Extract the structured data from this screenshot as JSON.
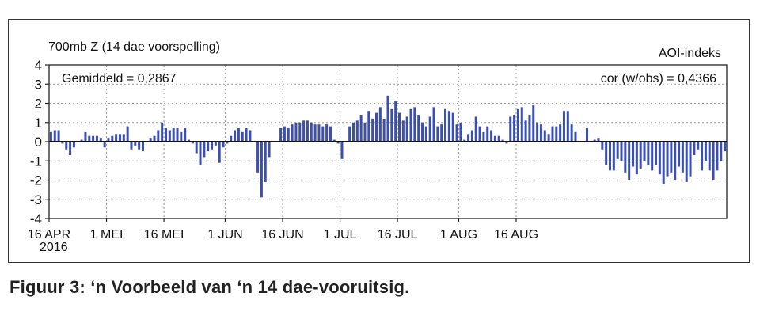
{
  "caption": "Figuur 3: ‘n Voorbeeld van ‘n 14 dae-vooruitsig.",
  "chart_data": {
    "type": "bar",
    "title": "700mb Z (14 dae voorspelling)",
    "series_label": "AOI-indeks",
    "annotation_left": "Gemiddeld = 0,2867",
    "annotation_right": "cor (w/obs) = 0,4366",
    "ylim": [
      -4,
      4
    ],
    "yticks": [
      "4",
      "3",
      "2",
      "1",
      "0",
      "-1",
      "-2",
      "-3",
      "-4"
    ],
    "xtick_labels": [
      "16 APR",
      "1 MEI",
      "16 MEI",
      "1 JUN",
      "16 JUN",
      "1 JUL",
      "16 JUL",
      "1 AUG",
      "16 AUG"
    ],
    "year_label": "2016",
    "grid": true,
    "bar_color": "#3b4fb0",
    "start_date": "2016-04-16",
    "values": [
      0.5,
      0.6,
      0.6,
      -0.1,
      -0.4,
      -0.7,
      -0.3,
      0.0,
      0.1,
      0.5,
      0.3,
      0.3,
      0.3,
      0.2,
      -0.3,
      0.2,
      0.3,
      0.4,
      0.4,
      0.4,
      0.8,
      -0.4,
      -0.2,
      -0.4,
      -0.5,
      0.0,
      0.2,
      0.3,
      0.6,
      1.0,
      0.7,
      0.6,
      0.7,
      0.7,
      0.5,
      0.7,
      0.1,
      -0.1,
      -0.6,
      -1.2,
      -0.8,
      -0.5,
      -0.4,
      -0.2,
      -1.1,
      -0.3,
      -0.1,
      0.3,
      0.6,
      0.7,
      0.5,
      0.7,
      0.6,
      0.0,
      -1.6,
      -2.9,
      -2.1,
      -0.8,
      0.0,
      0.0,
      0.7,
      0.8,
      0.7,
      0.9,
      1.0,
      1.0,
      1.1,
      1.1,
      1.0,
      0.9,
      0.9,
      0.8,
      0.9,
      0.8,
      0.1,
      -0.1,
      -0.9,
      0.0,
      0.8,
      1.0,
      1.1,
      1.4,
      1.0,
      1.6,
      1.2,
      1.5,
      1.8,
      1.2,
      2.4,
      1.7,
      2.1,
      1.5,
      1.1,
      1.3,
      1.7,
      1.8,
      1.4,
      1.0,
      0.8,
      1.3,
      1.8,
      0.8,
      0.9,
      1.7,
      1.6,
      1.5,
      0.9,
      1.0,
      0.1,
      0.4,
      0.6,
      1.3,
      0.8,
      0.5,
      0.8,
      0.6,
      0.3,
      0.3,
      0.1,
      -0.1,
      1.3,
      1.4,
      1.7,
      1.8,
      1.1,
      1.4,
      1.9,
      1.0,
      0.9,
      0.6,
      0.4,
      0.8,
      0.8,
      0.9,
      1.6,
      1.6,
      0.9,
      0.5,
      0.0,
      0.0,
      0.7,
      0.0,
      0.1,
      0.2,
      -0.4,
      -1.2,
      -1.5,
      -1.5,
      -0.9,
      -1.0,
      -1.6,
      -2.0,
      -1.3,
      -1.7,
      -1.4,
      -1.0,
      -1.2,
      -1.5,
      -1.2,
      -1.7,
      -2.2,
      -1.8,
      -1.6,
      -2.0,
      -1.3,
      -1.6,
      -2.1,
      -1.8,
      -0.7,
      -0.4,
      -1.5,
      -1.0,
      -1.5,
      -2.0,
      -1.5,
      -1.0,
      -0.5
    ]
  }
}
